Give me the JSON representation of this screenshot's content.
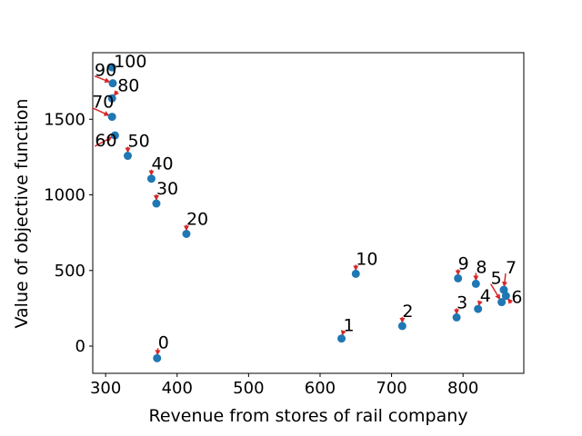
{
  "chart_data": {
    "type": "scatter",
    "title": "",
    "xlabel": "Revenue from stores of rail company",
    "ylabel": "Value of objective function",
    "xlim": [
      282,
      885
    ],
    "ylim": [
      -180,
      1940
    ],
    "xticks": [
      300,
      400,
      500,
      600,
      700,
      800
    ],
    "yticks": [
      0,
      500,
      1000,
      1500
    ],
    "grid": false,
    "legend": "none",
    "marker_color": "#1f77b4",
    "arrow_color": "#d62728",
    "points": [
      {
        "label": "0",
        "x": 372,
        "y": -80
      },
      {
        "label": "1",
        "x": 630,
        "y": 50
      },
      {
        "label": "2",
        "x": 715,
        "y": 133
      },
      {
        "label": "3",
        "x": 791,
        "y": 190
      },
      {
        "label": "4",
        "x": 821,
        "y": 246
      },
      {
        "label": "5",
        "x": 854,
        "y": 291
      },
      {
        "label": "6",
        "x": 860,
        "y": 332
      },
      {
        "label": "7",
        "x": 857,
        "y": 372
      },
      {
        "label": "8",
        "x": 818,
        "y": 412
      },
      {
        "label": "9",
        "x": 793,
        "y": 448
      },
      {
        "label": "10",
        "x": 650,
        "y": 478
      },
      {
        "label": "20",
        "x": 413,
        "y": 742
      },
      {
        "label": "30",
        "x": 371,
        "y": 943
      },
      {
        "label": "40",
        "x": 364,
        "y": 1107
      },
      {
        "label": "50",
        "x": 331,
        "y": 1258
      },
      {
        "label": "60",
        "x": 313,
        "y": 1393
      },
      {
        "label": "70",
        "x": 309,
        "y": 1516
      },
      {
        "label": "80",
        "x": 309,
        "y": 1638
      },
      {
        "label": "90",
        "x": 310,
        "y": 1738
      },
      {
        "label": "100",
        "x": 309,
        "y": 1843
      }
    ]
  }
}
